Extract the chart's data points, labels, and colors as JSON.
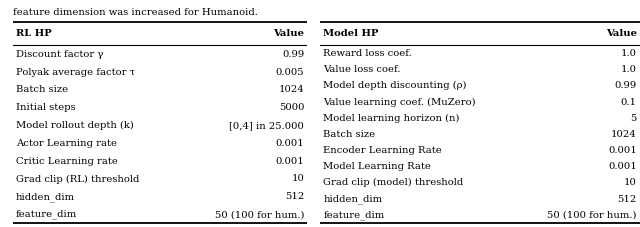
{
  "left_table": {
    "header": [
      "RL HP",
      "Value"
    ],
    "rows": [
      [
        "Discount factor γ",
        "0.99"
      ],
      [
        "Polyak average factor τ",
        "0.005"
      ],
      [
        "Batch size",
        "1024"
      ],
      [
        "Initial steps",
        "5000"
      ],
      [
        "Model rollout depth (k)",
        "[0,4] in 25.000"
      ],
      [
        "Actor Learning rate",
        "0.001"
      ],
      [
        "Critic Learning rate",
        "0.001"
      ],
      [
        "Grad clip (RL) threshold",
        "10"
      ],
      [
        "hidden_dim",
        "512"
      ],
      [
        "feature_dim",
        "50 (100 for hum.)"
      ]
    ]
  },
  "right_table": {
    "header": [
      "Model HP",
      "Value"
    ],
    "rows": [
      [
        "Reward loss coef.",
        "1.0"
      ],
      [
        "Value loss coef.",
        "1.0"
      ],
      [
        "Model depth discounting (ρ)",
        "0.99"
      ],
      [
        "Value learning coef. (MuZero)",
        "0.1"
      ],
      [
        "Model learning horizon (n)",
        "5"
      ],
      [
        "Batch size",
        "1024"
      ],
      [
        "Encoder Learning Rate",
        "0.001"
      ],
      [
        "Model Learning Rate",
        "0.001"
      ],
      [
        "Grad clip (model) threshold",
        "10"
      ],
      [
        "hidden_dim",
        "512"
      ],
      [
        "feature_dim",
        "50 (100 for hum.)"
      ]
    ]
  },
  "caption": "feature dimension was increased for Humanoid.",
  "bg_color": "#ffffff",
  "text_color": "#000000",
  "font_size": 7.2,
  "header_font_size": 7.2,
  "fig_width": 6.4,
  "fig_height": 2.27,
  "dpi": 100
}
